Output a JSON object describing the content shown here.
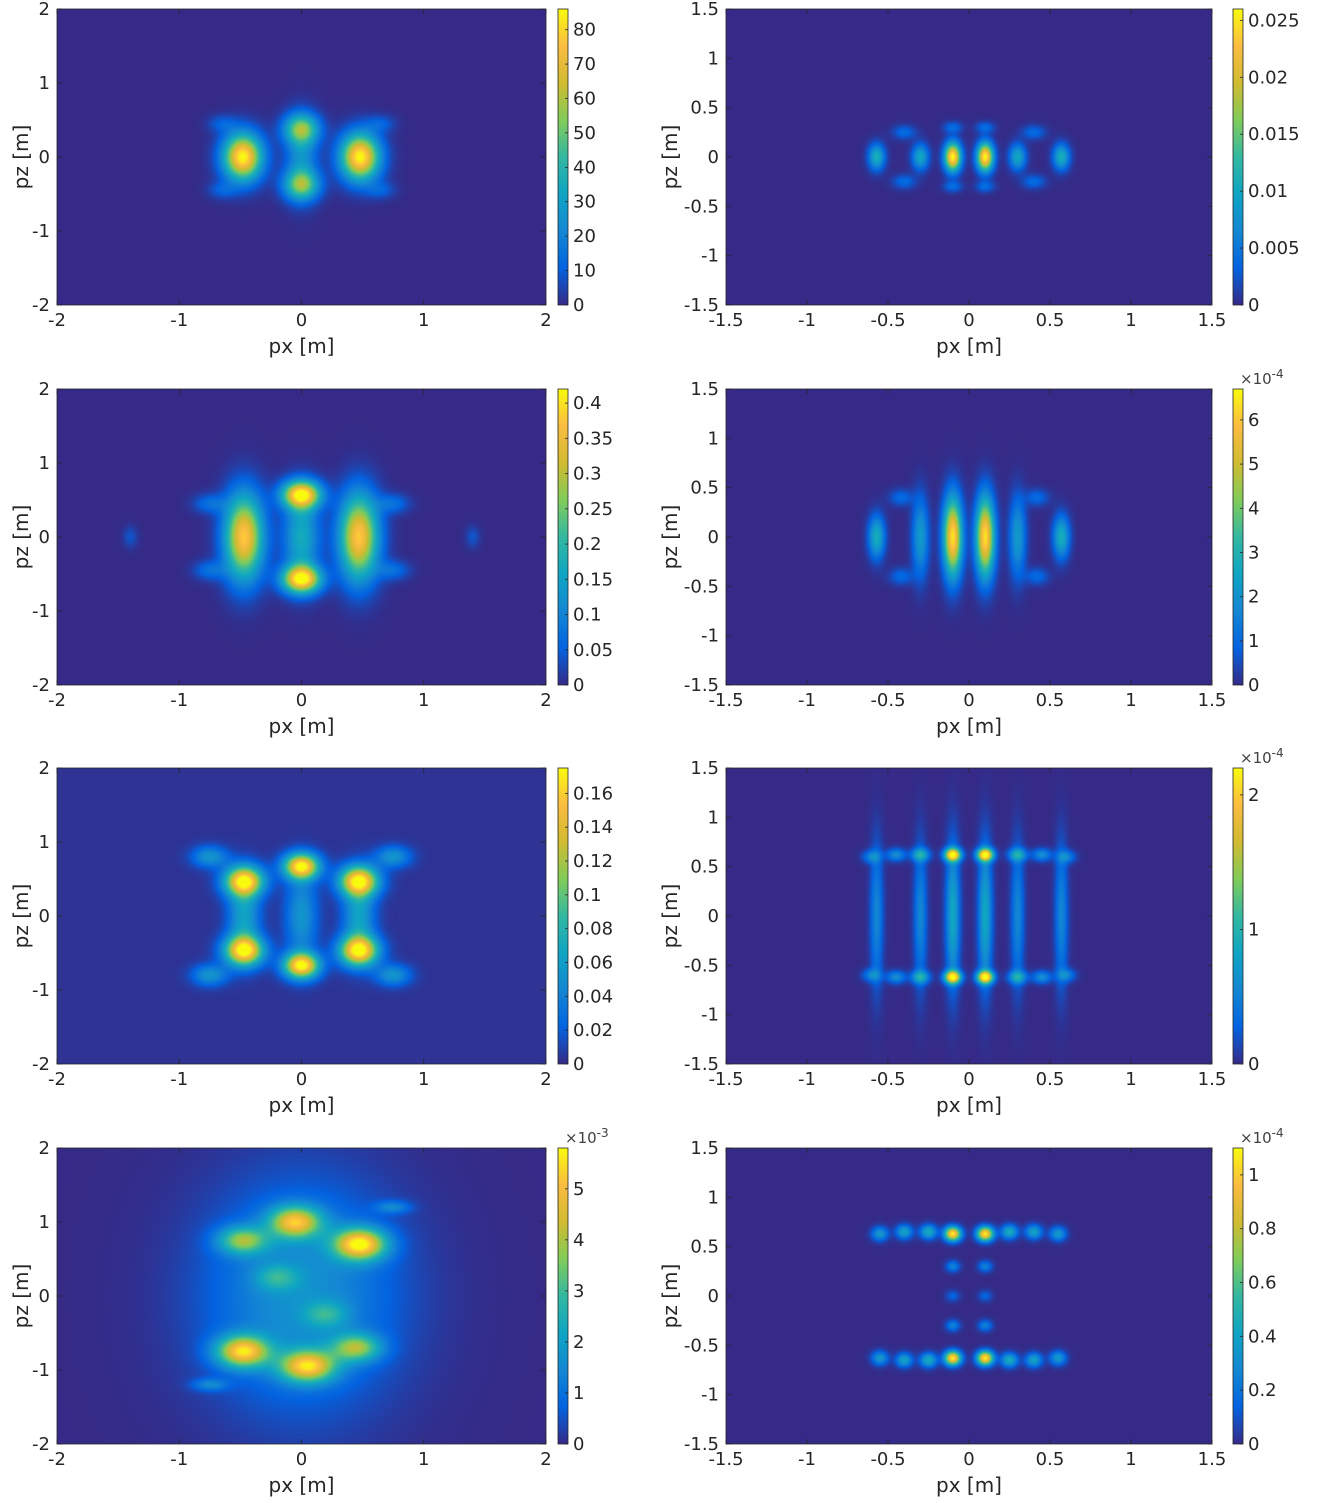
{
  "chart_data": [
    {
      "type": "heatmap",
      "xlabel": "px [m]",
      "ylabel": "pz [m]",
      "xlim": [
        -2,
        2
      ],
      "ylim": [
        -2,
        2
      ],
      "xticks": [
        "-2",
        "-1",
        "0",
        "1",
        "2"
      ],
      "yticks": [
        "-2",
        "-1",
        "0",
        "1",
        "2"
      ],
      "colorbar": {
        "range": [
          0,
          86
        ],
        "ticks": [
          "0",
          "10",
          "20",
          "30",
          "40",
          "50",
          "60",
          "70",
          "80"
        ],
        "exponent": ""
      },
      "background_level": 0.0,
      "blobs": [
        {
          "x": -0.48,
          "z": 0.0,
          "sx": 0.11,
          "sz": 0.22,
          "v": 86
        },
        {
          "x": 0.48,
          "z": 0.0,
          "sx": 0.11,
          "sz": 0.22,
          "v": 86
        },
        {
          "x": 0.0,
          "z": 0.38,
          "sx": 0.1,
          "sz": 0.14,
          "v": 48
        },
        {
          "x": 0.0,
          "z": -0.38,
          "sx": 0.1,
          "sz": 0.14,
          "v": 48
        },
        {
          "x": 0.0,
          "z": 0.0,
          "sx": 0.09,
          "sz": 0.35,
          "v": 25
        },
        {
          "x": -0.65,
          "z": 0.45,
          "sx": 0.08,
          "sz": 0.08,
          "v": 10
        },
        {
          "x": 0.65,
          "z": 0.45,
          "sx": 0.08,
          "sz": 0.08,
          "v": 10
        },
        {
          "x": -0.65,
          "z": -0.45,
          "sx": 0.08,
          "sz": 0.08,
          "v": 10
        },
        {
          "x": 0.65,
          "z": -0.45,
          "sx": 0.08,
          "sz": 0.08,
          "v": 10
        }
      ]
    },
    {
      "type": "heatmap",
      "xlabel": "px [m]",
      "ylabel": "pz [m]",
      "xlim": [
        -1.5,
        1.5
      ],
      "ylim": [
        -1.5,
        1.5
      ],
      "xticks": [
        "-1.5",
        "-1",
        "-0.5",
        "0",
        "0.5",
        "1",
        "1.5"
      ],
      "yticks": [
        "-1.5",
        "-1",
        "-0.5",
        "0",
        "0.5",
        "1",
        "1.5"
      ],
      "colorbar": {
        "range": [
          0,
          0.026
        ],
        "ticks": [
          "0",
          "0.005",
          "0.01",
          "0.015",
          "0.02",
          "0.025"
        ],
        "exponent": ""
      },
      "background_level": 0.0,
      "blobs": [
        {
          "x": -0.1,
          "z": 0.0,
          "sx": 0.035,
          "sz": 0.1,
          "v": 0.026
        },
        {
          "x": 0.1,
          "z": 0.0,
          "sx": 0.035,
          "sz": 0.1,
          "v": 0.026
        },
        {
          "x": -0.3,
          "z": 0.0,
          "sx": 0.035,
          "sz": 0.09,
          "v": 0.01
        },
        {
          "x": 0.3,
          "z": 0.0,
          "sx": 0.035,
          "sz": 0.09,
          "v": 0.01
        },
        {
          "x": -0.57,
          "z": 0.0,
          "sx": 0.035,
          "sz": 0.09,
          "v": 0.011
        },
        {
          "x": 0.57,
          "z": 0.0,
          "sx": 0.035,
          "sz": 0.09,
          "v": 0.011
        },
        {
          "x": -0.1,
          "z": 0.3,
          "sx": 0.04,
          "sz": 0.04,
          "v": 0.004
        },
        {
          "x": 0.1,
          "z": 0.3,
          "sx": 0.04,
          "sz": 0.04,
          "v": 0.004
        },
        {
          "x": -0.1,
          "z": -0.3,
          "sx": 0.04,
          "sz": 0.04,
          "v": 0.004
        },
        {
          "x": 0.1,
          "z": -0.3,
          "sx": 0.04,
          "sz": 0.04,
          "v": 0.004
        },
        {
          "x": -0.4,
          "z": 0.25,
          "sx": 0.05,
          "sz": 0.05,
          "v": 0.004
        },
        {
          "x": 0.4,
          "z": 0.25,
          "sx": 0.05,
          "sz": 0.05,
          "v": 0.004
        },
        {
          "x": -0.4,
          "z": -0.25,
          "sx": 0.05,
          "sz": 0.05,
          "v": 0.004
        },
        {
          "x": 0.4,
          "z": -0.25,
          "sx": 0.05,
          "sz": 0.05,
          "v": 0.004
        }
      ]
    },
    {
      "type": "heatmap",
      "xlabel": "px [m]",
      "ylabel": "pz [m]",
      "xlim": [
        -2,
        2
      ],
      "ylim": [
        -2,
        2
      ],
      "xticks": [
        "-2",
        "-1",
        "0",
        "1",
        "2"
      ],
      "yticks": [
        "-2",
        "-1",
        "0",
        "1",
        "2"
      ],
      "colorbar": {
        "range": [
          0,
          0.42
        ],
        "ticks": [
          "0",
          "0.05",
          "0.1",
          "0.15",
          "0.2",
          "0.25",
          "0.3",
          "0.35",
          "0.4"
        ],
        "exponent": ""
      },
      "background_level": 0.0,
      "blobs": [
        {
          "x": -0.47,
          "z": 0.0,
          "sx": 0.11,
          "sz": 0.4,
          "v": 0.38
        },
        {
          "x": 0.47,
          "z": 0.0,
          "sx": 0.11,
          "sz": 0.4,
          "v": 0.38
        },
        {
          "x": 0.0,
          "z": 0.57,
          "sx": 0.11,
          "sz": 0.13,
          "v": 0.4
        },
        {
          "x": 0.0,
          "z": -0.57,
          "sx": 0.11,
          "sz": 0.13,
          "v": 0.4
        },
        {
          "x": 0.0,
          "z": 0.0,
          "sx": 0.1,
          "sz": 0.4,
          "v": 0.17
        },
        {
          "x": -0.75,
          "z": 0.45,
          "sx": 0.09,
          "sz": 0.09,
          "v": 0.07
        },
        {
          "x": 0.75,
          "z": 0.45,
          "sx": 0.09,
          "sz": 0.09,
          "v": 0.07
        },
        {
          "x": -0.75,
          "z": -0.45,
          "sx": 0.09,
          "sz": 0.09,
          "v": 0.07
        },
        {
          "x": 0.75,
          "z": -0.45,
          "sx": 0.09,
          "sz": 0.09,
          "v": 0.07
        },
        {
          "x": -1.4,
          "z": 0.0,
          "sx": 0.04,
          "sz": 0.1,
          "v": 0.04
        },
        {
          "x": 1.4,
          "z": 0.0,
          "sx": 0.04,
          "sz": 0.1,
          "v": 0.04
        }
      ]
    },
    {
      "type": "heatmap",
      "xlabel": "px [m]",
      "ylabel": "pz [m]",
      "xlim": [
        -1.5,
        1.5
      ],
      "ylim": [
        -1.5,
        1.5
      ],
      "xticks": [
        "-1.5",
        "-1",
        "-0.5",
        "0",
        "0.5",
        "1",
        "1.5"
      ],
      "yticks": [
        "-1.5",
        "-1",
        "-0.5",
        "0",
        "0.5",
        "1",
        "1.5"
      ],
      "colorbar": {
        "range": [
          0,
          6.7
        ],
        "ticks": [
          "0",
          "1",
          "2",
          "3",
          "4",
          "5",
          "6"
        ],
        "exponent": "-4"
      },
      "background_level": 0.0,
      "blobs": [
        {
          "x": -0.1,
          "z": 0.0,
          "sx": 0.04,
          "sz": 0.28,
          "v": 6.4
        },
        {
          "x": 0.1,
          "z": 0.0,
          "sx": 0.04,
          "sz": 0.28,
          "v": 6.4
        },
        {
          "x": -0.3,
          "z": 0.0,
          "sx": 0.035,
          "sz": 0.28,
          "v": 2.2
        },
        {
          "x": 0.3,
          "z": 0.0,
          "sx": 0.035,
          "sz": 0.28,
          "v": 2.2
        },
        {
          "x": -0.57,
          "z": 0.0,
          "sx": 0.035,
          "sz": 0.15,
          "v": 2.8
        },
        {
          "x": 0.57,
          "z": 0.0,
          "sx": 0.035,
          "sz": 0.15,
          "v": 2.8
        },
        {
          "x": -0.42,
          "z": 0.4,
          "sx": 0.05,
          "sz": 0.06,
          "v": 1.0
        },
        {
          "x": 0.42,
          "z": 0.4,
          "sx": 0.05,
          "sz": 0.06,
          "v": 1.0
        },
        {
          "x": -0.42,
          "z": -0.4,
          "sx": 0.05,
          "sz": 0.06,
          "v": 1.0
        },
        {
          "x": 0.42,
          "z": -0.4,
          "sx": 0.05,
          "sz": 0.06,
          "v": 1.0
        }
      ]
    },
    {
      "type": "heatmap",
      "xlabel": "px [m]",
      "ylabel": "pz [m]",
      "xlim": [
        -2,
        2
      ],
      "ylim": [
        -2,
        2
      ],
      "xticks": [
        "-2",
        "-1",
        "0",
        "1",
        "2"
      ],
      "yticks": [
        "-2",
        "-1",
        "0",
        "1",
        "2"
      ],
      "colorbar": {
        "range": [
          0,
          0.175
        ],
        "ticks": [
          "0",
          "0.02",
          "0.04",
          "0.06",
          "0.08",
          "0.1",
          "0.12",
          "0.14",
          "0.16"
        ],
        "exponent": ""
      },
      "background_level": 0.018,
      "blobs": [
        {
          "x": -0.47,
          "z": 0.47,
          "sx": 0.11,
          "sz": 0.14,
          "v": 0.165
        },
        {
          "x": 0.47,
          "z": 0.47,
          "sx": 0.11,
          "sz": 0.14,
          "v": 0.165
        },
        {
          "x": -0.47,
          "z": -0.47,
          "sx": 0.11,
          "sz": 0.14,
          "v": 0.165
        },
        {
          "x": 0.47,
          "z": -0.47,
          "sx": 0.11,
          "sz": 0.14,
          "v": 0.165
        },
        {
          "x": 0.0,
          "z": 0.67,
          "sx": 0.1,
          "sz": 0.12,
          "v": 0.17
        },
        {
          "x": 0.0,
          "z": -0.67,
          "sx": 0.1,
          "sz": 0.12,
          "v": 0.17
        },
        {
          "x": -0.47,
          "z": 0.0,
          "sx": 0.09,
          "sz": 0.35,
          "v": 0.06
        },
        {
          "x": 0.47,
          "z": 0.0,
          "sx": 0.09,
          "sz": 0.35,
          "v": 0.06
        },
        {
          "x": 0.0,
          "z": 0.0,
          "sx": 0.09,
          "sz": 0.4,
          "v": 0.05
        },
        {
          "x": -0.75,
          "z": 0.8,
          "sx": 0.1,
          "sz": 0.1,
          "v": 0.05
        },
        {
          "x": 0.75,
          "z": 0.8,
          "sx": 0.1,
          "sz": 0.1,
          "v": 0.05
        },
        {
          "x": -0.75,
          "z": -0.8,
          "sx": 0.1,
          "sz": 0.1,
          "v": 0.05
        },
        {
          "x": 0.75,
          "z": -0.8,
          "sx": 0.1,
          "sz": 0.1,
          "v": 0.05
        }
      ]
    },
    {
      "type": "heatmap",
      "xlabel": "px [m]",
      "ylabel": "pz [m]",
      "xlim": [
        -1.5,
        1.5
      ],
      "ylim": [
        -1.5,
        1.5
      ],
      "xticks": [
        "-1.5",
        "-1",
        "-0.5",
        "0",
        "0.5",
        "1",
        "1.5"
      ],
      "yticks": [
        "-1.5",
        "-1",
        "-0.5",
        "0",
        "0.5",
        "1",
        "1.5"
      ],
      "colorbar": {
        "range": [
          0,
          2.2
        ],
        "ticks": [
          "0",
          "1",
          "2"
        ],
        "exponent": "-4"
      },
      "background_level": 0.0,
      "blobs": [
        {
          "x": -0.1,
          "z": 0.62,
          "sx": 0.035,
          "sz": 0.045,
          "v": 2.1
        },
        {
          "x": 0.1,
          "z": 0.62,
          "sx": 0.035,
          "sz": 0.045,
          "v": 2.1
        },
        {
          "x": -0.1,
          "z": -0.62,
          "sx": 0.035,
          "sz": 0.045,
          "v": 2.1
        },
        {
          "x": 0.1,
          "z": -0.62,
          "sx": 0.035,
          "sz": 0.045,
          "v": 2.1
        },
        {
          "x": -0.1,
          "z": 0.0,
          "sx": 0.03,
          "sz": 0.5,
          "v": 0.85
        },
        {
          "x": 0.1,
          "z": 0.0,
          "sx": 0.03,
          "sz": 0.5,
          "v": 0.85
        },
        {
          "x": -0.3,
          "z": 0.0,
          "sx": 0.028,
          "sz": 0.5,
          "v": 0.55
        },
        {
          "x": 0.3,
          "z": 0.0,
          "sx": 0.028,
          "sz": 0.5,
          "v": 0.55
        },
        {
          "x": -0.57,
          "z": 0.0,
          "sx": 0.028,
          "sz": 0.5,
          "v": 0.55
        },
        {
          "x": 0.57,
          "z": 0.0,
          "sx": 0.028,
          "sz": 0.5,
          "v": 0.55
        },
        {
          "x": -0.3,
          "z": 0.62,
          "sx": 0.04,
          "sz": 0.045,
          "v": 0.8
        },
        {
          "x": 0.3,
          "z": 0.62,
          "sx": 0.04,
          "sz": 0.045,
          "v": 0.8
        },
        {
          "x": -0.3,
          "z": -0.62,
          "sx": 0.04,
          "sz": 0.045,
          "v": 0.8
        },
        {
          "x": 0.3,
          "z": -0.62,
          "sx": 0.04,
          "sz": 0.045,
          "v": 0.8
        },
        {
          "x": -0.45,
          "z": 0.62,
          "sx": 0.04,
          "sz": 0.045,
          "v": 0.6
        },
        {
          "x": 0.45,
          "z": 0.62,
          "sx": 0.04,
          "sz": 0.045,
          "v": 0.6
        },
        {
          "x": -0.45,
          "z": -0.62,
          "sx": 0.04,
          "sz": 0.045,
          "v": 0.6
        },
        {
          "x": 0.45,
          "z": -0.62,
          "sx": 0.04,
          "sz": 0.045,
          "v": 0.6
        },
        {
          "x": -0.6,
          "z": 0.6,
          "sx": 0.04,
          "sz": 0.045,
          "v": 0.5
        },
        {
          "x": 0.6,
          "z": 0.6,
          "sx": 0.04,
          "sz": 0.045,
          "v": 0.5
        },
        {
          "x": -0.6,
          "z": -0.6,
          "sx": 0.04,
          "sz": 0.045,
          "v": 0.5
        },
        {
          "x": 0.6,
          "z": -0.6,
          "sx": 0.04,
          "sz": 0.045,
          "v": 0.5
        }
      ]
    },
    {
      "type": "heatmap",
      "xlabel": "px [m]",
      "ylabel": "pz [m]",
      "xlim": [
        -2,
        2
      ],
      "ylim": [
        -2,
        2
      ],
      "xticks": [
        "-2",
        "-1",
        "0",
        "1",
        "2"
      ],
      "yticks": [
        "-2",
        "-1",
        "0",
        "1",
        "2"
      ],
      "colorbar": {
        "range": [
          0,
          5.8
        ],
        "ticks": [
          "0",
          "1",
          "2",
          "3",
          "4",
          "5"
        ],
        "exponent": "-3"
      },
      "background_level": 0.0,
      "blobs": [
        {
          "x": 0.0,
          "z": 0.0,
          "sx": 0.55,
          "sz": 1.05,
          "v": 1.7
        },
        {
          "x": -0.48,
          "z": 0.75,
          "sx": 0.14,
          "sz": 0.13,
          "v": 3.2
        },
        {
          "x": -0.05,
          "z": 1.0,
          "sx": 0.15,
          "sz": 0.15,
          "v": 4.3
        },
        {
          "x": 0.48,
          "z": 0.7,
          "sx": 0.15,
          "sz": 0.15,
          "v": 5.2
        },
        {
          "x": -0.48,
          "z": -0.75,
          "sx": 0.15,
          "sz": 0.15,
          "v": 4.8
        },
        {
          "x": 0.05,
          "z": -0.95,
          "sx": 0.16,
          "sz": 0.15,
          "v": 4.6
        },
        {
          "x": 0.45,
          "z": -0.7,
          "sx": 0.14,
          "sz": 0.13,
          "v": 3.2
        },
        {
          "x": -0.2,
          "z": 0.25,
          "sx": 0.12,
          "sz": 0.12,
          "v": 1.5
        },
        {
          "x": 0.2,
          "z": -0.25,
          "sx": 0.12,
          "sz": 0.12,
          "v": 1.5
        },
        {
          "x": 0.75,
          "z": 1.2,
          "sx": 0.1,
          "sz": 0.06,
          "v": 1.2
        },
        {
          "x": -0.75,
          "z": -1.2,
          "sx": 0.1,
          "sz": 0.06,
          "v": 1.2
        }
      ]
    },
    {
      "type": "heatmap",
      "xlabel": "px [m]",
      "ylabel": "pz [m]",
      "xlim": [
        -1.5,
        1.5
      ],
      "ylim": [
        -1.5,
        1.5
      ],
      "xticks": [
        "-1.5",
        "-1",
        "-0.5",
        "0",
        "0.5",
        "1",
        "1.5"
      ],
      "yticks": [
        "-1.5",
        "-1",
        "-0.5",
        "0",
        "0.5",
        "1",
        "1.5"
      ],
      "colorbar": {
        "range": [
          0,
          1.1
        ],
        "ticks": [
          "0",
          "0.2",
          "0.4",
          "0.6",
          "0.8",
          "1"
        ],
        "exponent": "-4"
      },
      "background_level": 0.0,
      "blobs": [
        {
          "x": -0.1,
          "z": 0.63,
          "sx": 0.035,
          "sz": 0.05,
          "v": 1.08
        },
        {
          "x": 0.1,
          "z": 0.63,
          "sx": 0.035,
          "sz": 0.05,
          "v": 1.08
        },
        {
          "x": -0.1,
          "z": -0.63,
          "sx": 0.035,
          "sz": 0.05,
          "v": 1.08
        },
        {
          "x": 0.1,
          "z": -0.63,
          "sx": 0.035,
          "sz": 0.05,
          "v": 1.08
        },
        {
          "x": -0.25,
          "z": 0.65,
          "sx": 0.035,
          "sz": 0.05,
          "v": 0.45
        },
        {
          "x": 0.25,
          "z": 0.65,
          "sx": 0.035,
          "sz": 0.05,
          "v": 0.45
        },
        {
          "x": -0.25,
          "z": -0.65,
          "sx": 0.035,
          "sz": 0.05,
          "v": 0.45
        },
        {
          "x": 0.25,
          "z": -0.65,
          "sx": 0.035,
          "sz": 0.05,
          "v": 0.45
        },
        {
          "x": -0.4,
          "z": 0.65,
          "sx": 0.035,
          "sz": 0.05,
          "v": 0.4
        },
        {
          "x": 0.4,
          "z": 0.65,
          "sx": 0.035,
          "sz": 0.05,
          "v": 0.4
        },
        {
          "x": -0.4,
          "z": -0.65,
          "sx": 0.035,
          "sz": 0.05,
          "v": 0.4
        },
        {
          "x": 0.4,
          "z": -0.65,
          "sx": 0.035,
          "sz": 0.05,
          "v": 0.4
        },
        {
          "x": -0.55,
          "z": 0.63,
          "sx": 0.035,
          "sz": 0.05,
          "v": 0.35
        },
        {
          "x": 0.55,
          "z": 0.63,
          "sx": 0.035,
          "sz": 0.05,
          "v": 0.35
        },
        {
          "x": -0.55,
          "z": -0.63,
          "sx": 0.035,
          "sz": 0.05,
          "v": 0.35
        },
        {
          "x": 0.55,
          "z": -0.63,
          "sx": 0.035,
          "sz": 0.05,
          "v": 0.35
        },
        {
          "x": -0.1,
          "z": 0.3,
          "sx": 0.03,
          "sz": 0.04,
          "v": 0.25
        },
        {
          "x": 0.1,
          "z": 0.3,
          "sx": 0.03,
          "sz": 0.04,
          "v": 0.25
        },
        {
          "x": -0.1,
          "z": -0.3,
          "sx": 0.03,
          "sz": 0.04,
          "v": 0.25
        },
        {
          "x": 0.1,
          "z": -0.3,
          "sx": 0.03,
          "sz": 0.04,
          "v": 0.25
        },
        {
          "x": -0.1,
          "z": 0.0,
          "sx": 0.03,
          "sz": 0.04,
          "v": 0.15
        },
        {
          "x": 0.1,
          "z": 0.0,
          "sx": 0.03,
          "sz": 0.04,
          "v": 0.15
        }
      ]
    }
  ]
}
